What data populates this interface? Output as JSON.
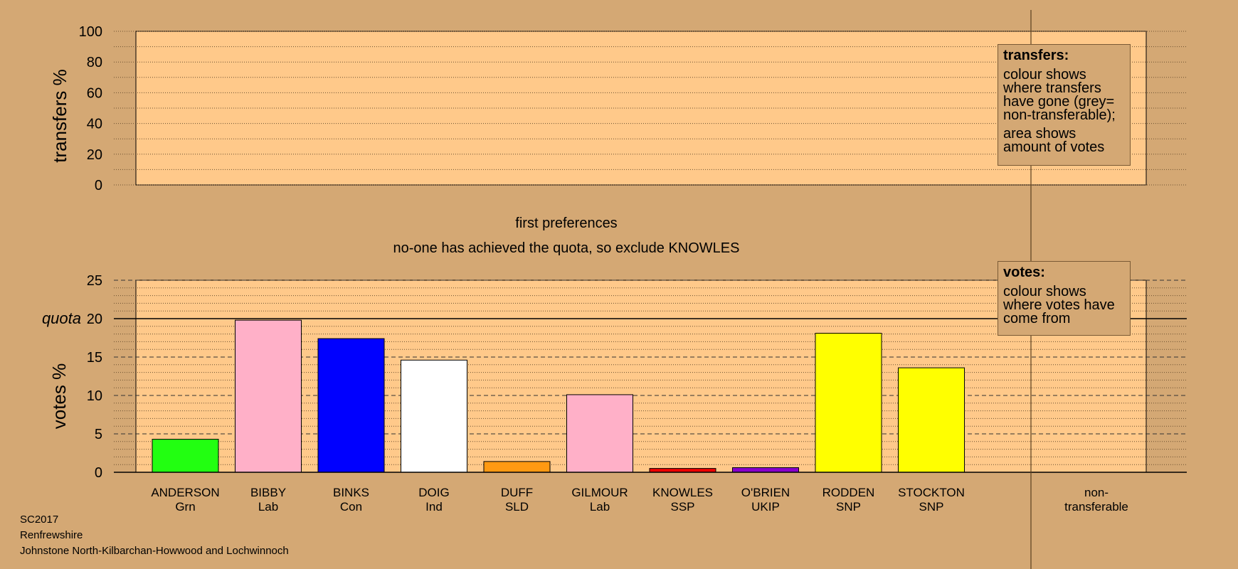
{
  "chart_data": [
    {
      "type": "bar",
      "panel": "transfers",
      "ylabel": "transfers %",
      "ylim": [
        0,
        100
      ],
      "yticks": [
        0,
        20,
        40,
        60,
        80,
        100
      ],
      "grid": true,
      "categories": [],
      "values": []
    },
    {
      "type": "bar",
      "panel": "votes",
      "title": "first preferences",
      "subtitle": "no-one has achieved the quota, so exclude KNOWLES",
      "ylabel": "votes %",
      "ylim": [
        0,
        25
      ],
      "yticks": [
        0,
        5,
        10,
        15,
        20,
        25
      ],
      "quota": 20,
      "quota_label": "quota",
      "grid": true,
      "categories": [
        {
          "name": "ANDERSON",
          "party": "Grn",
          "value": 4.3,
          "color": "#22ff11"
        },
        {
          "name": "BIBBY",
          "party": "Lab",
          "value": 19.8,
          "color": "#ffb0c8"
        },
        {
          "name": "BINKS",
          "party": "Con",
          "value": 17.4,
          "color": "#0000ff"
        },
        {
          "name": "DOIG",
          "party": "Ind",
          "value": 14.6,
          "color": "#ffffff"
        },
        {
          "name": "DUFF",
          "party": "SLD",
          "value": 1.4,
          "color": "#ff9912"
        },
        {
          "name": "GILMOUR",
          "party": "Lab",
          "value": 10.1,
          "color": "#ffb0c8"
        },
        {
          "name": "KNOWLES",
          "party": "SSP",
          "value": 0.5,
          "color": "#ee0000"
        },
        {
          "name": "O'BRIEN",
          "party": "UKIP",
          "value": 0.6,
          "color": "#8800cc"
        },
        {
          "name": "RODDEN",
          "party": "SNP",
          "value": 18.1,
          "color": "#ffff00"
        },
        {
          "name": "STOCKTON",
          "party": "SNP",
          "value": 13.6,
          "color": "#ffff00"
        }
      ],
      "nontransferable_label_line1": "non-",
      "nontransferable_label_line2": "transferable"
    }
  ],
  "legends": {
    "transfers": {
      "title": "transfers:",
      "line1": "colour shows where transfers have gone (grey= non-transferable);",
      "line2": "area shows amount of votes"
    },
    "votes": {
      "title": "votes:",
      "line1": "colour shows where votes have come from"
    }
  },
  "footer": {
    "election": "SC2017",
    "council": "Renfrewshire",
    "ward": "Johnstone North-Kilbarchan-Howwood and Lochwinnoch"
  },
  "colors": {
    "background": "#d4a874",
    "plot_area": "#ffc98a",
    "separator": "#5a4020"
  }
}
